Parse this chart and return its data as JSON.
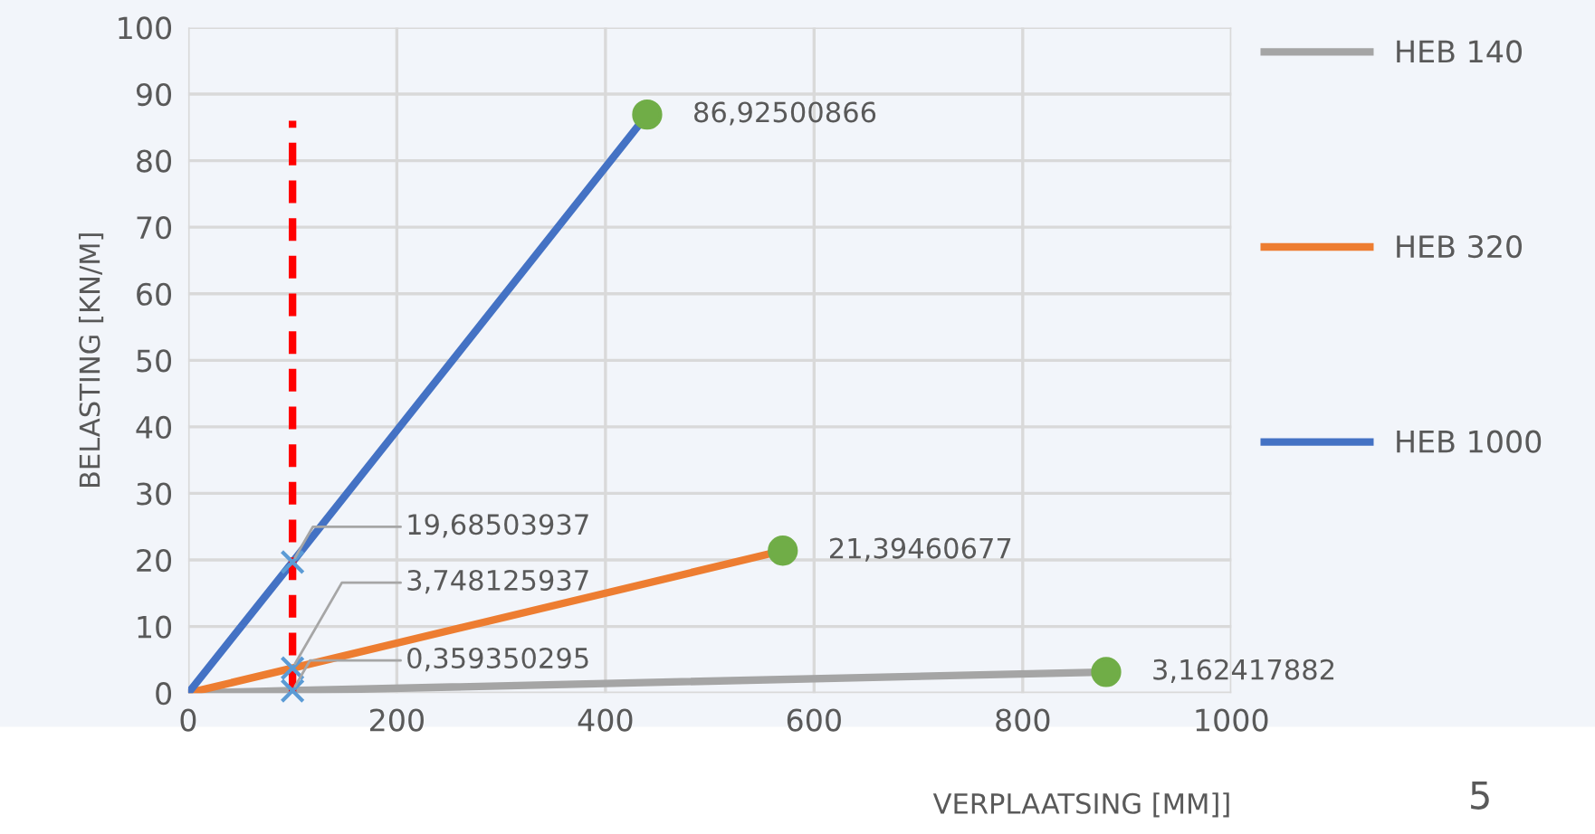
{
  "chart_data": {
    "type": "line",
    "xlabel": "VERPLAATSING [MM]]",
    "ylabel": "BELASTING [KN/M]",
    "xlim": [
      0,
      1000
    ],
    "xticks": [
      0,
      200,
      400,
      600,
      800,
      1000
    ],
    "ylim": [
      0,
      100
    ],
    "yticks": [
      0,
      10,
      20,
      30,
      40,
      50,
      60,
      70,
      80,
      90,
      100
    ],
    "grid": true,
    "legend": "right",
    "line_style": "solid",
    "series": [
      {
        "name": "HEB 140",
        "color": "#a5a5a5",
        "x": [
          0,
          100,
          880
        ],
        "values": [
          0,
          0.359350295,
          3.162417882
        ]
      },
      {
        "name": "HEB 320",
        "color": "#ed7d31",
        "x": [
          0,
          100,
          570
        ],
        "values": [
          0,
          3.748125937,
          21.39460677
        ]
      },
      {
        "name": "HEB 1000",
        "color": "#4472c4",
        "x": [
          0,
          100,
          440
        ],
        "values": [
          0,
          19.68503937,
          86.92500866
        ]
      },
      {
        "type": "line",
        "color": "#ff0000",
        "line_style": "dashed",
        "x": [
          100,
          100
        ],
        "values": [
          0,
          86
        ]
      },
      {
        "type": "scatter",
        "color": "#5b9bd5",
        "marker": "cross",
        "x": [
          100,
          100,
          100
        ],
        "values": [
          0.359350295,
          3.748125937,
          19.68503937
        ],
        "value_labels": [
          "0,359350295",
          "3,748125937",
          "19,68503937"
        ]
      },
      {
        "type": "scatter",
        "color": "#70ad47",
        "marker": "circle",
        "x": [
          880,
          570,
          440
        ],
        "values": [
          3.162417882,
          21.39460677,
          86.92500866
        ],
        "value_labels": [
          "3,162417882",
          "21,39460677",
          "86,92500866"
        ]
      }
    ],
    "annotations": [
      "5"
    ]
  }
}
